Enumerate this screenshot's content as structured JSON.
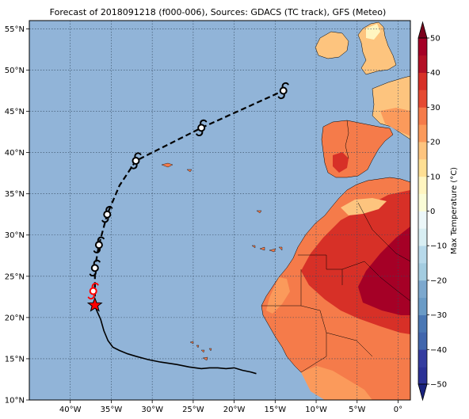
{
  "title": "Forecast of 2018091218 (f000-006), Sources: GDACS (TC track), GFS (Meteo)",
  "map": {
    "lon_range": [
      -45,
      1.5
    ],
    "lat_range": [
      10,
      56
    ],
    "lon_ticks": [
      {
        "value": -40,
        "label": "40°W"
      },
      {
        "value": -35,
        "label": "35°W"
      },
      {
        "value": -30,
        "label": "30°W"
      },
      {
        "value": -25,
        "label": "25°W"
      },
      {
        "value": -20,
        "label": "20°W"
      },
      {
        "value": -15,
        "label": "15°W"
      },
      {
        "value": -10,
        "label": "10°W"
      },
      {
        "value": -5,
        "label": "5°W"
      },
      {
        "value": 0,
        "label": "0°"
      }
    ],
    "lat_ticks": [
      {
        "value": 10,
        "label": "10°N"
      },
      {
        "value": 15,
        "label": "15°N"
      },
      {
        "value": 20,
        "label": "20°N"
      },
      {
        "value": 25,
        "label": "25°N"
      },
      {
        "value": 30,
        "label": "30°N"
      },
      {
        "value": 35,
        "label": "35°N"
      },
      {
        "value": 40,
        "label": "40°N"
      },
      {
        "value": 45,
        "label": "45°N"
      },
      {
        "value": 50,
        "label": "50°N"
      },
      {
        "value": 55,
        "label": "55°N"
      }
    ],
    "ocean_color": "#91b4d8",
    "grid": true,
    "past_track": [
      [
        -17.3,
        13.2
      ],
      [
        -18.0,
        13.4
      ],
      [
        -19.0,
        13.6
      ],
      [
        -20.0,
        13.9
      ],
      [
        -21.0,
        13.8
      ],
      [
        -22.0,
        13.9
      ],
      [
        -23.0,
        13.9
      ],
      [
        -24.0,
        13.8
      ],
      [
        -25.5,
        14.0
      ],
      [
        -27.0,
        14.3
      ],
      [
        -29.0,
        14.6
      ],
      [
        -30.5,
        14.9
      ],
      [
        -32.0,
        15.3
      ],
      [
        -33.0,
        15.6
      ],
      [
        -34.0,
        16.0
      ],
      [
        -34.8,
        16.4
      ],
      [
        -35.4,
        17.2
      ],
      [
        -35.9,
        18.4
      ],
      [
        -36.3,
        19.8
      ],
      [
        -36.8,
        20.9
      ],
      [
        -37.0,
        21.5
      ]
    ],
    "current_position": {
      "lon": -37.0,
      "lat": 21.5,
      "color": "#ff0000"
    },
    "current_symbol": {
      "lon": -37.2,
      "lat": 23.2,
      "color": "#ff0000"
    },
    "forecast_track": [
      [
        -37.0,
        26.0
      ],
      [
        -36.5,
        28.8
      ],
      [
        -35.5,
        32.5
      ],
      [
        -34.0,
        36.0
      ],
      [
        -32.0,
        39.0
      ],
      [
        -24.0,
        43.0
      ],
      [
        -14.0,
        47.5
      ]
    ],
    "forecast_symbols": [
      {
        "lon": -37.0,
        "lat": 26.0
      },
      {
        "lon": -36.5,
        "lat": 28.8
      },
      {
        "lon": -35.5,
        "lat": 32.5
      },
      {
        "lon": -32.0,
        "lat": 39.0
      },
      {
        "lon": -24.0,
        "lat": 43.0
      },
      {
        "lon": -14.0,
        "lat": 47.5
      }
    ]
  },
  "colorbar": {
    "label": "Max Temperature (°C)",
    "min": -50,
    "max": 50,
    "ticks": [
      "50",
      "40",
      "30",
      "20",
      "10",
      "0",
      "−10",
      "−20",
      "−30",
      "−40",
      "−50"
    ],
    "levels": [
      {
        "from": -50,
        "to": -45,
        "color": "#2b3196"
      },
      {
        "from": -45,
        "to": -40,
        "color": "#343c9f"
      },
      {
        "from": -40,
        "to": -35,
        "color": "#4166ad"
      },
      {
        "from": -35,
        "to": -30,
        "color": "#4a77b4"
      },
      {
        "from": -30,
        "to": -25,
        "color": "#6a9bc6"
      },
      {
        "from": -25,
        "to": -20,
        "color": "#7ca8ce"
      },
      {
        "from": -20,
        "to": -15,
        "color": "#a3cce0"
      },
      {
        "from": -15,
        "to": -10,
        "color": "#b7d9ea"
      },
      {
        "from": -10,
        "to": -5,
        "color": "#d8eef3"
      },
      {
        "from": -5,
        "to": 0,
        "color": "#ecf7f9"
      },
      {
        "from": 0,
        "to": 5,
        "color": "#fafcd7"
      },
      {
        "from": 5,
        "to": 10,
        "color": "#fff5c0"
      },
      {
        "from": 10,
        "to": 15,
        "color": "#fedf93"
      },
      {
        "from": 15,
        "to": 20,
        "color": "#fdc47e"
      },
      {
        "from": 20,
        "to": 25,
        "color": "#fb9a5b"
      },
      {
        "from": 25,
        "to": 30,
        "color": "#f57b4a"
      },
      {
        "from": 30,
        "to": 35,
        "color": "#e54a32"
      },
      {
        "from": 35,
        "to": 40,
        "color": "#d73027"
      },
      {
        "from": 40,
        "to": 45,
        "color": "#b31026"
      },
      {
        "from": 45,
        "to": 50,
        "color": "#a50026"
      }
    ],
    "under_color": "#1a237e",
    "over_color": "#7a001c"
  }
}
